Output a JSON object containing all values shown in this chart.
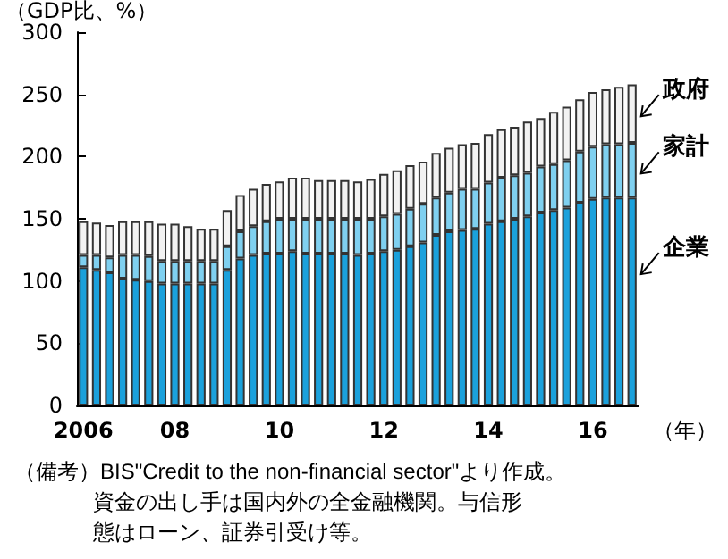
{
  "chart_data": {
    "type": "bar",
    "stacked": true,
    "ylabel": "（GDP比、%）",
    "xlabel": "（年）",
    "categories": [
      "2006",
      null,
      null,
      null,
      null,
      null,
      null,
      "08",
      null,
      null,
      null,
      null,
      null,
      null,
      null,
      "10",
      null,
      null,
      null,
      null,
      null,
      null,
      null,
      "12",
      null,
      null,
      null,
      null,
      null,
      null,
      null,
      "14",
      null,
      null,
      null,
      null,
      null,
      null,
      null,
      "16",
      null,
      null,
      null
    ],
    "series": [
      {
        "name": "企業",
        "color": "#1ba1dc",
        "values": [
          111,
          109,
          107,
          102,
          101,
          100,
          98,
          98,
          98,
          98,
          98,
          109,
          118,
          121,
          122,
          122,
          124,
          122,
          122,
          122,
          122,
          121,
          122,
          124,
          125,
          128,
          131,
          137,
          140,
          141,
          142,
          146,
          148,
          150,
          152,
          155,
          157,
          159,
          163,
          166,
          167,
          167,
          167
        ]
      },
      {
        "name": "家計",
        "color": "#7fd0f0",
        "values": [
          10,
          12,
          12,
          19,
          20,
          20,
          18,
          18,
          18,
          18,
          18,
          19,
          22,
          23,
          26,
          28,
          26,
          28,
          28,
          28,
          28,
          29,
          28,
          28,
          29,
          30,
          31,
          30,
          31,
          33,
          32,
          33,
          35,
          35,
          35,
          37,
          37,
          38,
          41,
          42,
          43,
          43,
          44
        ]
      },
      {
        "name": "政府",
        "color": "#f2f2f2",
        "values": [
          27,
          26,
          26,
          27,
          27,
          28,
          30,
          30,
          28,
          26,
          26,
          29,
          29,
          30,
          30,
          30,
          33,
          33,
          31,
          31,
          31,
          30,
          32,
          34,
          35,
          35,
          34,
          36,
          36,
          36,
          37,
          39,
          39,
          39,
          41,
          39,
          42,
          43,
          42,
          44,
          44,
          46,
          47
        ]
      }
    ],
    "ylim": [
      0,
      300
    ],
    "yticks": [
      0,
      50,
      100,
      150,
      200,
      250,
      300
    ],
    "annotations": [
      "（備考）BIS\"Credit to the non-financial sector\"より作成。",
      "資金の出し手は国内外の全金融機関。与信形",
      "態はローン、証券引受け等。"
    ]
  }
}
